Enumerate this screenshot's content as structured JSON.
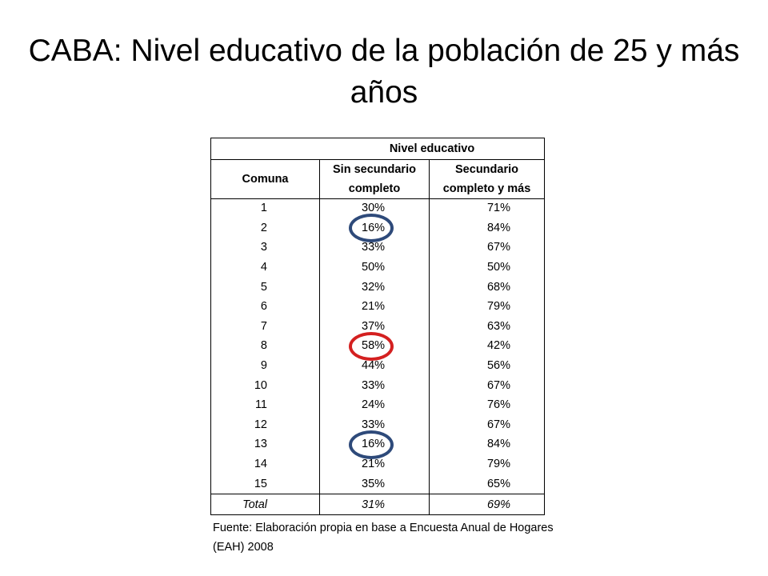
{
  "title": "CABA: Nivel educativo de la población de 25 y más años",
  "table": {
    "group_header": "Nivel educativo",
    "col_comuna": "Comuna",
    "col_sin": "Sin secundario completo",
    "col_sec": "Secundario completo y más",
    "rows": [
      {
        "comuna": "1",
        "sin": "30%",
        "sec": "71%"
      },
      {
        "comuna": "2",
        "sin": "16%",
        "sec": "84%"
      },
      {
        "comuna": "3",
        "sin": "33%",
        "sec": "67%"
      },
      {
        "comuna": "4",
        "sin": "50%",
        "sec": "50%"
      },
      {
        "comuna": "5",
        "sin": "32%",
        "sec": "68%"
      },
      {
        "comuna": "6",
        "sin": "21%",
        "sec": "79%"
      },
      {
        "comuna": "7",
        "sin": "37%",
        "sec": "63%"
      },
      {
        "comuna": "8",
        "sin": "58%",
        "sec": "42%"
      },
      {
        "comuna": "9",
        "sin": "44%",
        "sec": "56%"
      },
      {
        "comuna": "10",
        "sin": "33%",
        "sec": "67%"
      },
      {
        "comuna": "11",
        "sin": "24%",
        "sec": "76%"
      },
      {
        "comuna": "12",
        "sin": "33%",
        "sec": "67%"
      },
      {
        "comuna": "13",
        "sin": "16%",
        "sec": "84%"
      },
      {
        "comuna": "14",
        "sin": "21%",
        "sec": "79%"
      },
      {
        "comuna": "15",
        "sin": "35%",
        "sec": "65%"
      }
    ],
    "total": {
      "label": "Total",
      "sin": "31%",
      "sec": "69%"
    }
  },
  "highlights": [
    {
      "comuna": "2",
      "color": "#2e4a7a"
    },
    {
      "comuna": "8",
      "color": "#d42020"
    },
    {
      "comuna": "13",
      "color": "#2e4a7a"
    }
  ],
  "source_note": "Fuente: Elaboración propia en base a Encuesta Anual de Hogares (EAH) 2008"
}
